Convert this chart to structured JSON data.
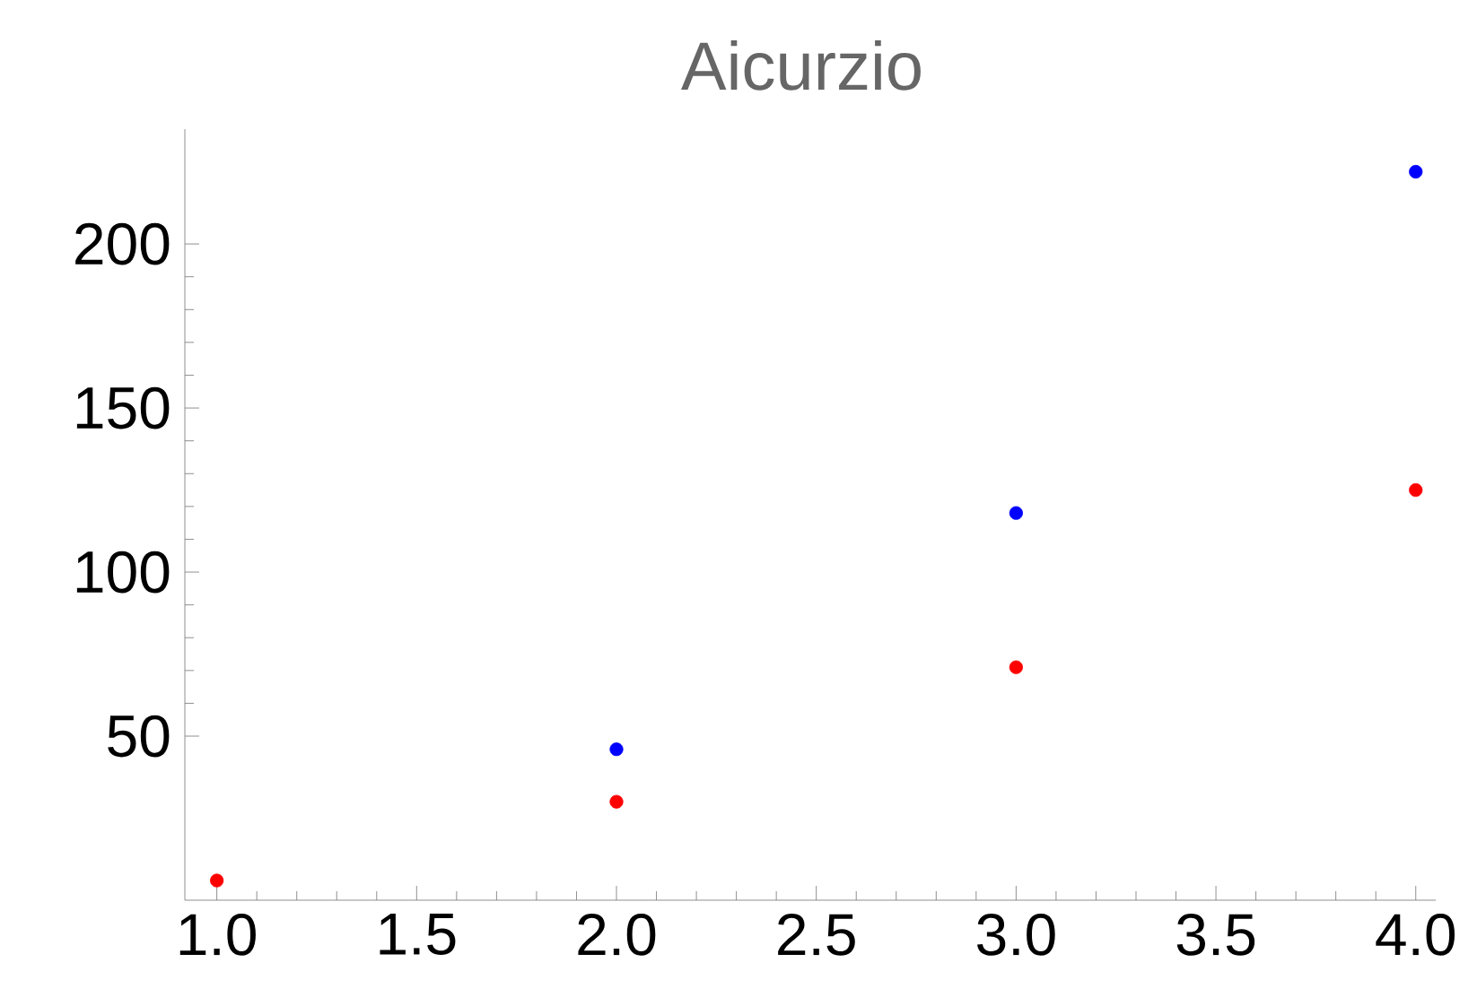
{
  "chart_data": {
    "type": "scatter",
    "title": "Aicurzio",
    "marker": "circle",
    "xlim": [
      0.92,
      4.05
    ],
    "ylim": [
      0,
      235
    ],
    "xticks": [
      {
        "value": 1.0,
        "label": "1.0"
      },
      {
        "value": 1.5,
        "label": "1.5"
      },
      {
        "value": 2.0,
        "label": "2.0"
      },
      {
        "value": 2.5,
        "label": "2.5"
      },
      {
        "value": 3.0,
        "label": "3.0"
      },
      {
        "value": 3.5,
        "label": "3.5"
      },
      {
        "value": 4.0,
        "label": "4.0"
      }
    ],
    "yticks": [
      50,
      100,
      150,
      200
    ],
    "series": [
      {
        "color": "#ff0000",
        "x": [
          1,
          2,
          3,
          4
        ],
        "values": [
          6,
          30,
          71,
          125
        ]
      },
      {
        "color": "#0000ff",
        "x": [
          2,
          3,
          4
        ],
        "values": [
          46,
          118,
          222
        ]
      }
    ]
  }
}
